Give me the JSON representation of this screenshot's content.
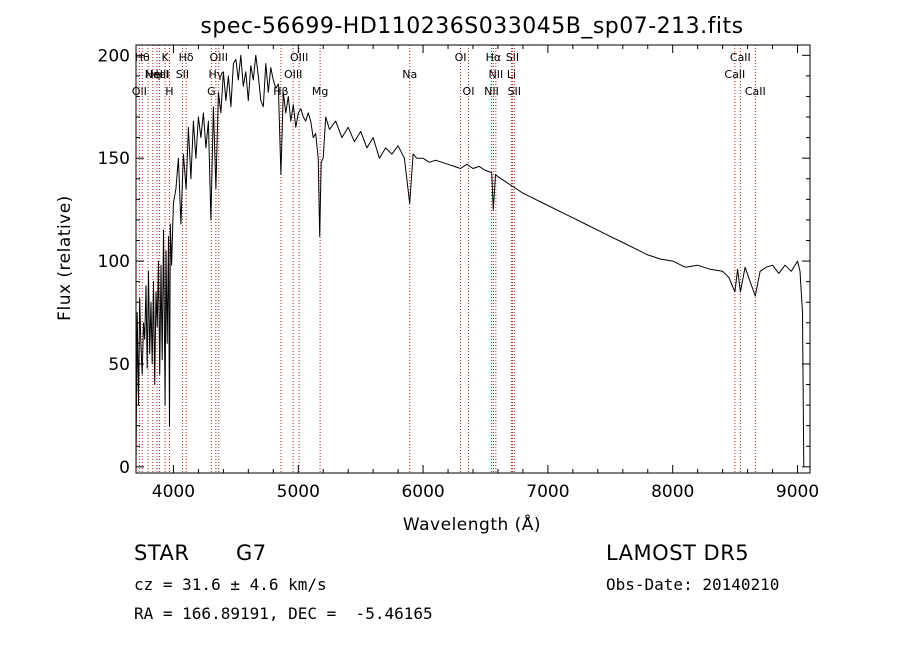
{
  "chart_data": {
    "type": "line",
    "title": "spec-56699-HD110236S033045B_sp07-213.fits",
    "xlabel": "Wavelength (Å)",
    "ylabel": "Flux (relative)",
    "xlim": [
      3700,
      9100
    ],
    "ylim": [
      -3,
      205
    ],
    "xticks": [
      4000,
      5000,
      6000,
      7000,
      8000,
      9000
    ],
    "yticks": [
      0,
      50,
      100,
      150,
      200
    ],
    "grid": false,
    "series": [
      {
        "x": [
          3700,
          3710,
          3720,
          3730,
          3740,
          3750,
          3760,
          3770,
          3780,
          3790,
          3800,
          3810,
          3820,
          3830,
          3840,
          3850,
          3860,
          3870,
          3880,
          3890,
          3900,
          3910,
          3920,
          3933,
          3940,
          3950,
          3960,
          3968,
          3975,
          3985,
          4000,
          4020,
          4040,
          4060,
          4080,
          4101,
          4120,
          4140,
          4160,
          4180,
          4200,
          4220,
          4240,
          4260,
          4280,
          4300,
          4320,
          4340,
          4360,
          4380,
          4400,
          4420,
          4440,
          4460,
          4480,
          4500,
          4520,
          4540,
          4560,
          4580,
          4600,
          4620,
          4640,
          4660,
          4680,
          4700,
          4720,
          4740,
          4760,
          4780,
          4800,
          4820,
          4840,
          4861,
          4880,
          4900,
          4920,
          4940,
          4960,
          4980,
          5000,
          5020,
          5040,
          5060,
          5080,
          5100,
          5120,
          5140,
          5160,
          5172,
          5184,
          5200,
          5220,
          5250,
          5300,
          5350,
          5400,
          5450,
          5500,
          5550,
          5600,
          5650,
          5700,
          5750,
          5800,
          5850,
          5893,
          5920,
          5950,
          6000,
          6050,
          6100,
          6150,
          6200,
          6250,
          6300,
          6350,
          6400,
          6450,
          6500,
          6550,
          6563,
          6580,
          6600,
          6650,
          6700,
          6750,
          6800,
          6900,
          7000,
          7100,
          7200,
          7300,
          7400,
          7500,
          7600,
          7700,
          7800,
          7900,
          8000,
          8100,
          8200,
          8300,
          8400,
          8450,
          8498,
          8520,
          8542,
          8580,
          8620,
          8662,
          8700,
          8750,
          8800,
          8850,
          8900,
          8950,
          9000,
          9020,
          9040,
          9050
        ],
        "values": [
          0,
          75,
          30,
          82,
          58,
          45,
          70,
          62,
          88,
          48,
          95,
          55,
          80,
          50,
          90,
          40,
          85,
          68,
          100,
          45,
          98,
          52,
          115,
          30,
          105,
          60,
          112,
          20,
          118,
          98,
          128,
          135,
          150,
          118,
          152,
          135,
          165,
          140,
          168,
          150,
          170,
          160,
          172,
          155,
          168,
          120,
          175,
          135,
          182,
          172,
          192,
          178,
          190,
          175,
          196,
          198,
          188,
          200,
          185,
          192,
          178,
          195,
          188,
          200,
          190,
          178,
          175,
          196,
          182,
          194,
          188,
          184,
          186,
          142,
          182,
          172,
          180,
          168,
          176,
          165,
          172,
          174,
          170,
          168,
          172,
          168,
          160,
          162,
          150,
          112,
          148,
          150,
          170,
          164,
          168,
          160,
          165,
          158,
          163,
          155,
          160,
          150,
          155,
          152,
          156,
          150,
          128,
          152,
          150,
          150,
          148,
          149,
          148,
          147,
          146,
          145,
          147,
          145,
          146,
          144,
          143,
          125,
          142,
          141,
          139,
          137,
          135,
          133,
          130,
          127,
          124,
          121,
          118,
          115,
          112,
          109,
          106,
          103,
          101,
          100,
          97,
          98,
          96,
          95,
          92,
          85,
          96,
          85,
          97,
          90,
          83,
          95,
          97,
          98,
          94,
          98,
          95,
          100,
          95,
          75,
          0
        ]
      }
    ],
    "lines": [
      {
        "wavelength": 3727,
        "rows": [
          2
        ],
        "label": "OII"
      },
      {
        "wavelength": 3750,
        "rows": [
          0
        ],
        "label": "Hθ"
      },
      {
        "wavelength": 3797,
        "rows": [
          0
        ],
        "label": ""
      },
      {
        "wavelength": 3835,
        "rows": [
          1
        ],
        "label": "Hη"
      },
      {
        "wavelength": 3869,
        "rows": [
          1
        ],
        "label": "NeIII"
      },
      {
        "wavelength": 3889,
        "rows": [
          1
        ],
        "label": "HeI"
      },
      {
        "wavelength": 3933,
        "rows": [
          0
        ],
        "label": "K"
      },
      {
        "wavelength": 3968,
        "rows": [
          2
        ],
        "label": "H"
      },
      {
        "wavelength": 4072,
        "rows": [
          1
        ],
        "label": "SII"
      },
      {
        "wavelength": 4102,
        "rows": [
          0
        ],
        "label": "Hδ"
      },
      {
        "wavelength": 4304,
        "rows": [
          2
        ],
        "label": "G"
      },
      {
        "wavelength": 4340,
        "rows": [
          1
        ],
        "label": "Hγ"
      },
      {
        "wavelength": 4363,
        "rows": [
          0
        ],
        "label": "OIII"
      },
      {
        "wavelength": 4861,
        "rows": [
          2
        ],
        "label": "Hβ"
      },
      {
        "wavelength": 4959,
        "rows": [
          1
        ],
        "label": "OIII"
      },
      {
        "wavelength": 5007,
        "rows": [
          0
        ],
        "label": "OIII"
      },
      {
        "wavelength": 5175,
        "rows": [
          2
        ],
        "label": "Mg"
      },
      {
        "wavelength": 5893,
        "rows": [
          1
        ],
        "label": "Na"
      },
      {
        "wavelength": 6300,
        "rows": [
          0
        ],
        "label": "OI"
      },
      {
        "wavelength": 6364,
        "rows": [
          2
        ],
        "label": "OI"
      },
      {
        "wavelength": 6548,
        "rows": [
          2
        ],
        "label": "NII"
      },
      {
        "wavelength": 6563,
        "rows": [
          0
        ],
        "label": "Hα"
      },
      {
        "wavelength": 6583,
        "rows": [
          1
        ],
        "label": "NII"
      },
      {
        "wavelength": 6708,
        "rows": [
          1
        ],
        "label": "Li"
      },
      {
        "wavelength": 6716,
        "rows": [
          0
        ],
        "label": "SII"
      },
      {
        "wavelength": 6731,
        "rows": [
          2
        ],
        "label": "SII"
      },
      {
        "wavelength": 8498,
        "rows": [
          1
        ],
        "label": "CaII"
      },
      {
        "wavelength": 8542,
        "rows": [
          0
        ],
        "label": "CaII"
      },
      {
        "wavelength": 8662,
        "rows": [
          2
        ],
        "label": "CaII"
      }
    ]
  },
  "info": {
    "object_class": "STAR",
    "subclass": "G7",
    "survey": "LAMOST DR5",
    "cz": "cz = 31.6 ± 4.6 km/s",
    "obs_date": "Obs-Date: 20140210",
    "coords": "RA = 166.89191, DEC =  -5.46165"
  },
  "colors": {
    "line_marker": "#b22222",
    "spectrum": "#000000",
    "background": "#ffffff"
  }
}
